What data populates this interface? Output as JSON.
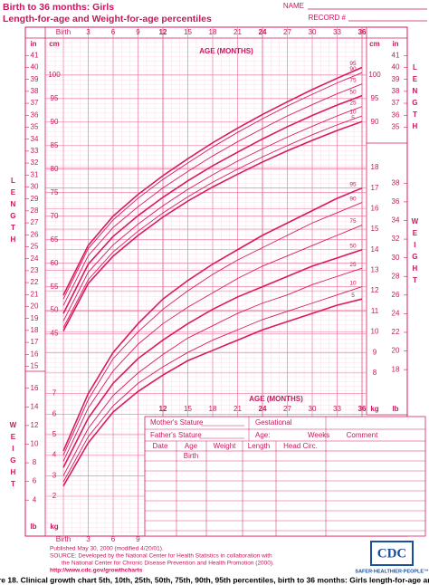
{
  "header": {
    "title": "Birth to 36 months: Girls",
    "subtitle": "Length-for-age and Weight-for-age percentiles",
    "name_label": "NAME",
    "record_label": "RECORD #"
  },
  "chart_data": [
    {
      "type": "line",
      "title": "Length-for-age",
      "xlabel": "AGE (MONTHS)",
      "ylabel": "LENGTH",
      "yunit": "cm",
      "y2unit": "in",
      "x": [
        0,
        3,
        6,
        9,
        12,
        15,
        18,
        21,
        24,
        27,
        30,
        33,
        36
      ],
      "xlim": [
        0,
        36
      ],
      "xticks": [
        {
          "value": 0,
          "label": "Birth"
        },
        3,
        6,
        9,
        12,
        15,
        18,
        21,
        24,
        27,
        30,
        33,
        36
      ],
      "ylim": [
        38,
        104
      ],
      "yticks": [
        45,
        50,
        55,
        60,
        65,
        70,
        75,
        80,
        85,
        90,
        95,
        100
      ],
      "y2lim": [
        14.961,
        40.945
      ],
      "y2ticks": [
        15,
        16,
        17,
        18,
        19,
        20,
        21,
        22,
        23,
        24,
        25,
        26,
        27,
        28,
        29,
        30,
        31,
        32,
        33,
        34,
        35,
        36,
        37,
        38,
        39,
        40,
        41
      ],
      "grid": true,
      "series": [
        {
          "name": "95",
          "color": "#d81b60",
          "values": [
            53.2,
            63.8,
            70.0,
            74.6,
            78.6,
            82.2,
            85.6,
            88.7,
            91.6,
            94.3,
            96.9,
            99.3,
            101.6
          ]
        },
        {
          "name": "90",
          "color": "#d81b60",
          "values": [
            52.4,
            63.1,
            69.2,
            73.8,
            77.8,
            81.3,
            84.7,
            87.8,
            90.7,
            93.4,
            95.9,
            98.3,
            100.5
          ]
        },
        {
          "name": "75",
          "color": "#d81b60",
          "values": [
            51.0,
            61.6,
            67.6,
            72.0,
            76.0,
            79.5,
            82.8,
            85.8,
            88.6,
            91.3,
            93.7,
            96.0,
            98.1
          ]
        },
        {
          "name": "50",
          "color": "#d81b60",
          "values": [
            49.3,
            59.8,
            65.7,
            70.1,
            74.0,
            77.5,
            80.7,
            83.6,
            86.4,
            89.0,
            91.4,
            93.6,
            95.6
          ]
        },
        {
          "name": "25",
          "color": "#d81b60",
          "values": [
            47.7,
            58.1,
            63.9,
            68.3,
            72.2,
            75.7,
            78.8,
            81.7,
            84.3,
            86.8,
            89.1,
            91.3,
            93.3
          ]
        },
        {
          "name": "10",
          "color": "#d81b60",
          "values": [
            46.3,
            56.5,
            62.4,
            66.8,
            70.7,
            74.1,
            77.2,
            80.0,
            82.6,
            85.0,
            87.3,
            89.4,
            91.3
          ]
        },
        {
          "name": "5",
          "color": "#d81b60",
          "values": [
            45.6,
            55.7,
            61.5,
            65.9,
            69.8,
            73.2,
            76.2,
            78.9,
            81.5,
            83.9,
            86.1,
            88.2,
            90.1
          ]
        }
      ]
    },
    {
      "type": "line",
      "title": "Weight-for-age",
      "xlabel": "AGE (MONTHS)",
      "ylabel": "WEIGHT",
      "yunit": "kg",
      "y2unit": "lb",
      "x": [
        0,
        3,
        6,
        9,
        12,
        15,
        18,
        21,
        24,
        27,
        30,
        33,
        36
      ],
      "xlim": [
        0,
        36
      ],
      "xticks": [
        {
          "value": 0,
          "label": "Birth"
        },
        3,
        6,
        9,
        12,
        15,
        18,
        21,
        24,
        27,
        30,
        33,
        36
      ],
      "ylim": [
        1,
        18
      ],
      "yticks": [
        2,
        3,
        4,
        5,
        6,
        7,
        8,
        9,
        10,
        11,
        12,
        13,
        14,
        15,
        16,
        17,
        18
      ],
      "y2lim": [
        2.2046,
        39.683
      ],
      "y2ticks": [
        4,
        6,
        8,
        10,
        12,
        14,
        16,
        18,
        20,
        22,
        24,
        26,
        28,
        30,
        32,
        34,
        36,
        38
      ],
      "grid": true,
      "series": [
        {
          "name": "95",
          "color": "#d81b60",
          "values": [
            4.2,
            7.0,
            9.0,
            10.4,
            11.6,
            12.5,
            13.3,
            14.0,
            14.7,
            15.3,
            15.9,
            16.5,
            17.0
          ]
        },
        {
          "name": "90",
          "color": "#d81b60",
          "values": [
            4.0,
            6.7,
            8.7,
            10.0,
            11.1,
            12.0,
            12.8,
            13.5,
            14.1,
            14.7,
            15.3,
            15.8,
            16.3
          ]
        },
        {
          "name": "75",
          "color": "#d81b60",
          "values": [
            3.7,
            6.3,
            8.1,
            9.4,
            10.4,
            11.2,
            11.9,
            12.6,
            13.2,
            13.7,
            14.2,
            14.7,
            15.2
          ]
        },
        {
          "name": "50",
          "color": "#d81b60",
          "values": [
            3.4,
            5.8,
            7.5,
            8.7,
            9.6,
            10.4,
            11.1,
            11.7,
            12.2,
            12.7,
            13.2,
            13.6,
            14.0
          ]
        },
        {
          "name": "25",
          "color": "#d81b60",
          "values": [
            3.0,
            5.3,
            6.9,
            8.0,
            8.9,
            9.7,
            10.3,
            10.9,
            11.4,
            11.8,
            12.3,
            12.7,
            13.1
          ]
        },
        {
          "name": "10",
          "color": "#d81b60",
          "values": [
            2.7,
            4.9,
            6.4,
            7.5,
            8.3,
            9.0,
            9.6,
            10.1,
            10.6,
            11.0,
            11.4,
            11.8,
            12.2
          ]
        },
        {
          "name": "5",
          "color": "#d81b60",
          "values": [
            2.5,
            4.6,
            6.1,
            7.1,
            7.9,
            8.6,
            9.1,
            9.6,
            10.1,
            10.5,
            10.9,
            11.3,
            11.6
          ]
        }
      ]
    }
  ],
  "form": {
    "mothers_stature": "Mother's Stature",
    "gestational": "Gestational",
    "fathers_stature": "Father's Stature",
    "age": "Age:",
    "weeks": "Weeks",
    "comment": "Comment",
    "columns": [
      "Date",
      "Age",
      "Weight",
      "Length",
      "Head Circ."
    ],
    "first_row_age": "Birth"
  },
  "footer": {
    "published": "Published May 30, 2000 (modified 4/20/01).",
    "source1": "SOURCE: Developed by the National Center for Health Statistics in collaboration with",
    "source2": "the National Center for Chronic Disease Prevention and Health Promotion (2000).",
    "url": "http://www.cdc.gov/growthcharts",
    "logo": "CDC",
    "tagline": "SAFER·HEALTHIER·PEOPLE™",
    "caption": "re 18. Clinical growth chart 5th, 10th, 25th, 50th, 75th, 90th, 95th percentiles, birth to 36 months: Girls length-for-age and weight-for-"
  }
}
